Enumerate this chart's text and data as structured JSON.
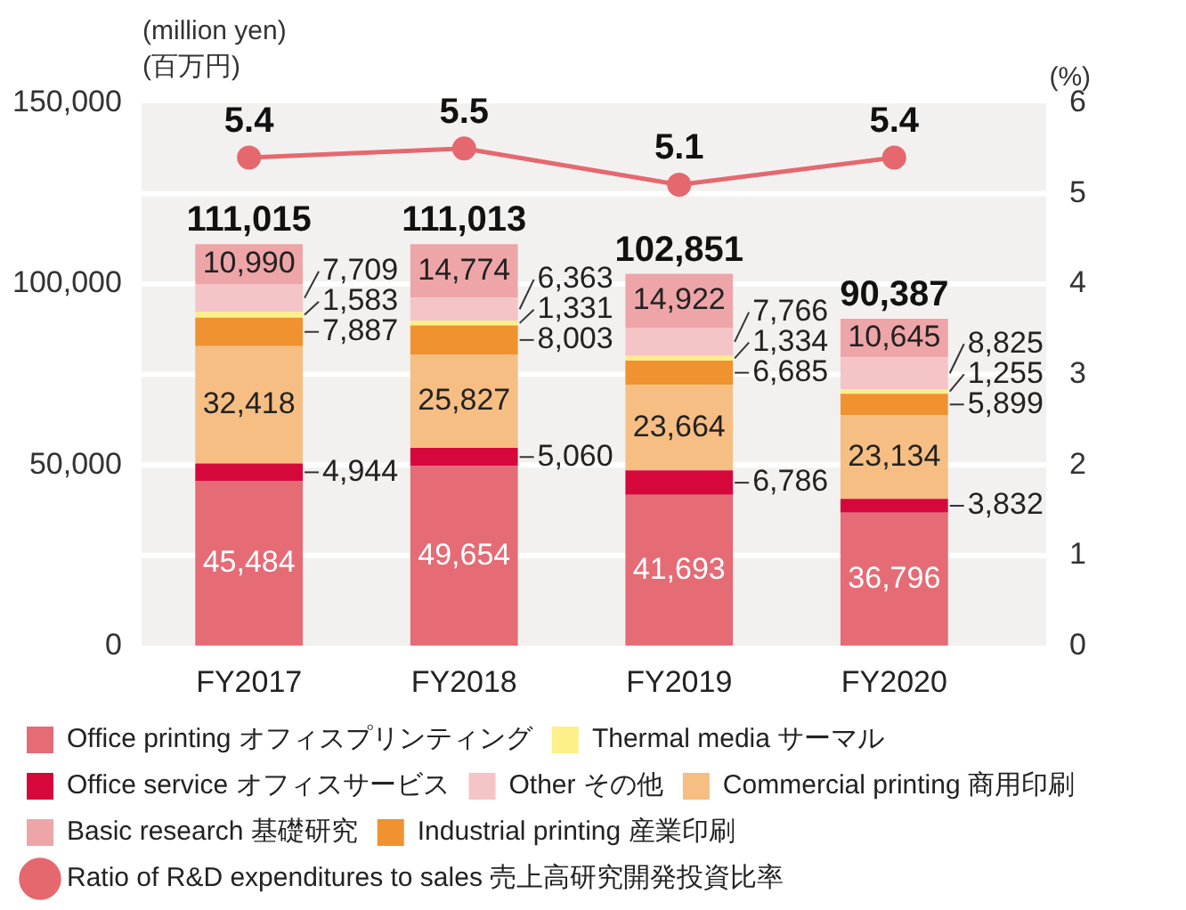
{
  "chart_data": {
    "type": "bar",
    "stacked": true,
    "categories": [
      "FY2017",
      "FY2018",
      "FY2019",
      "FY2020"
    ],
    "ylabel": "(million yen)\n(百万円)",
    "y2label": "(%)",
    "ylim": [
      0,
      150000
    ],
    "yticks": [
      {
        "value": 0,
        "label": "0"
      },
      {
        "value": 50000,
        "label": "50,000"
      },
      {
        "value": 100000,
        "label": "100,000"
      },
      {
        "value": 150000,
        "label": "150,000"
      }
    ],
    "y2lim": [
      0,
      6
    ],
    "y2ticks": [
      0,
      1,
      2,
      3,
      4,
      5,
      6
    ],
    "grid": true,
    "legend": "bottom",
    "totals": [
      "111,015",
      "111,013",
      "102,851",
      "90,387"
    ],
    "series": [
      {
        "name": "Office printing オフィスプリンティング",
        "color": "#e56b75",
        "values": [
          45484,
          49654,
          41693,
          36796
        ],
        "value_labels": [
          "45,484",
          "49,654",
          "41,693",
          "36,796"
        ]
      },
      {
        "name": "Office service オフィスサービス",
        "color": "#d6083b",
        "values": [
          4944,
          5060,
          6786,
          3832
        ],
        "value_labels": [
          "4,944",
          "5,060",
          "6,786",
          "3,832"
        ]
      },
      {
        "name": "Commercial printing 商用印刷",
        "color": "#f6be82",
        "values": [
          32418,
          25827,
          23664,
          23134
        ],
        "value_labels": [
          "32,418",
          "25,827",
          "23,664",
          "23,134"
        ]
      },
      {
        "name": "Industrial printing 産業印刷",
        "color": "#ef922f",
        "values": [
          7887,
          8003,
          6685,
          5899
        ],
        "value_labels": [
          "7,887",
          "8,003",
          "6,685",
          "5,899"
        ]
      },
      {
        "name": "Thermal media サーマル",
        "color": "#fdef8a",
        "values": [
          1583,
          1331,
          1334,
          1255
        ],
        "value_labels": [
          "1,583",
          "1,331",
          "1,334",
          "1,255"
        ]
      },
      {
        "name": "Other その他",
        "color": "#f5c4c6",
        "values": [
          7709,
          6363,
          7766,
          8825
        ],
        "value_labels": [
          "7,709",
          "6,363",
          "7,766",
          "8,825"
        ]
      },
      {
        "name": "Basic research 基礎研究",
        "color": "#eea5a8",
        "values": [
          10990,
          14774,
          14922,
          10645
        ],
        "value_labels": [
          "10,990",
          "14,774",
          "14,922",
          "10,645"
        ]
      },
      {
        "name": "Ratio of R&D expenditures to sales 売上高研究開発投資比率",
        "type": "line",
        "axis": "y2",
        "marker": "circle",
        "color": "#e5686f",
        "values": [
          5.4,
          5.5,
          5.1,
          5.4
        ],
        "value_labels": [
          "5.4",
          "5.5",
          "5.1",
          "5.4"
        ]
      }
    ]
  }
}
